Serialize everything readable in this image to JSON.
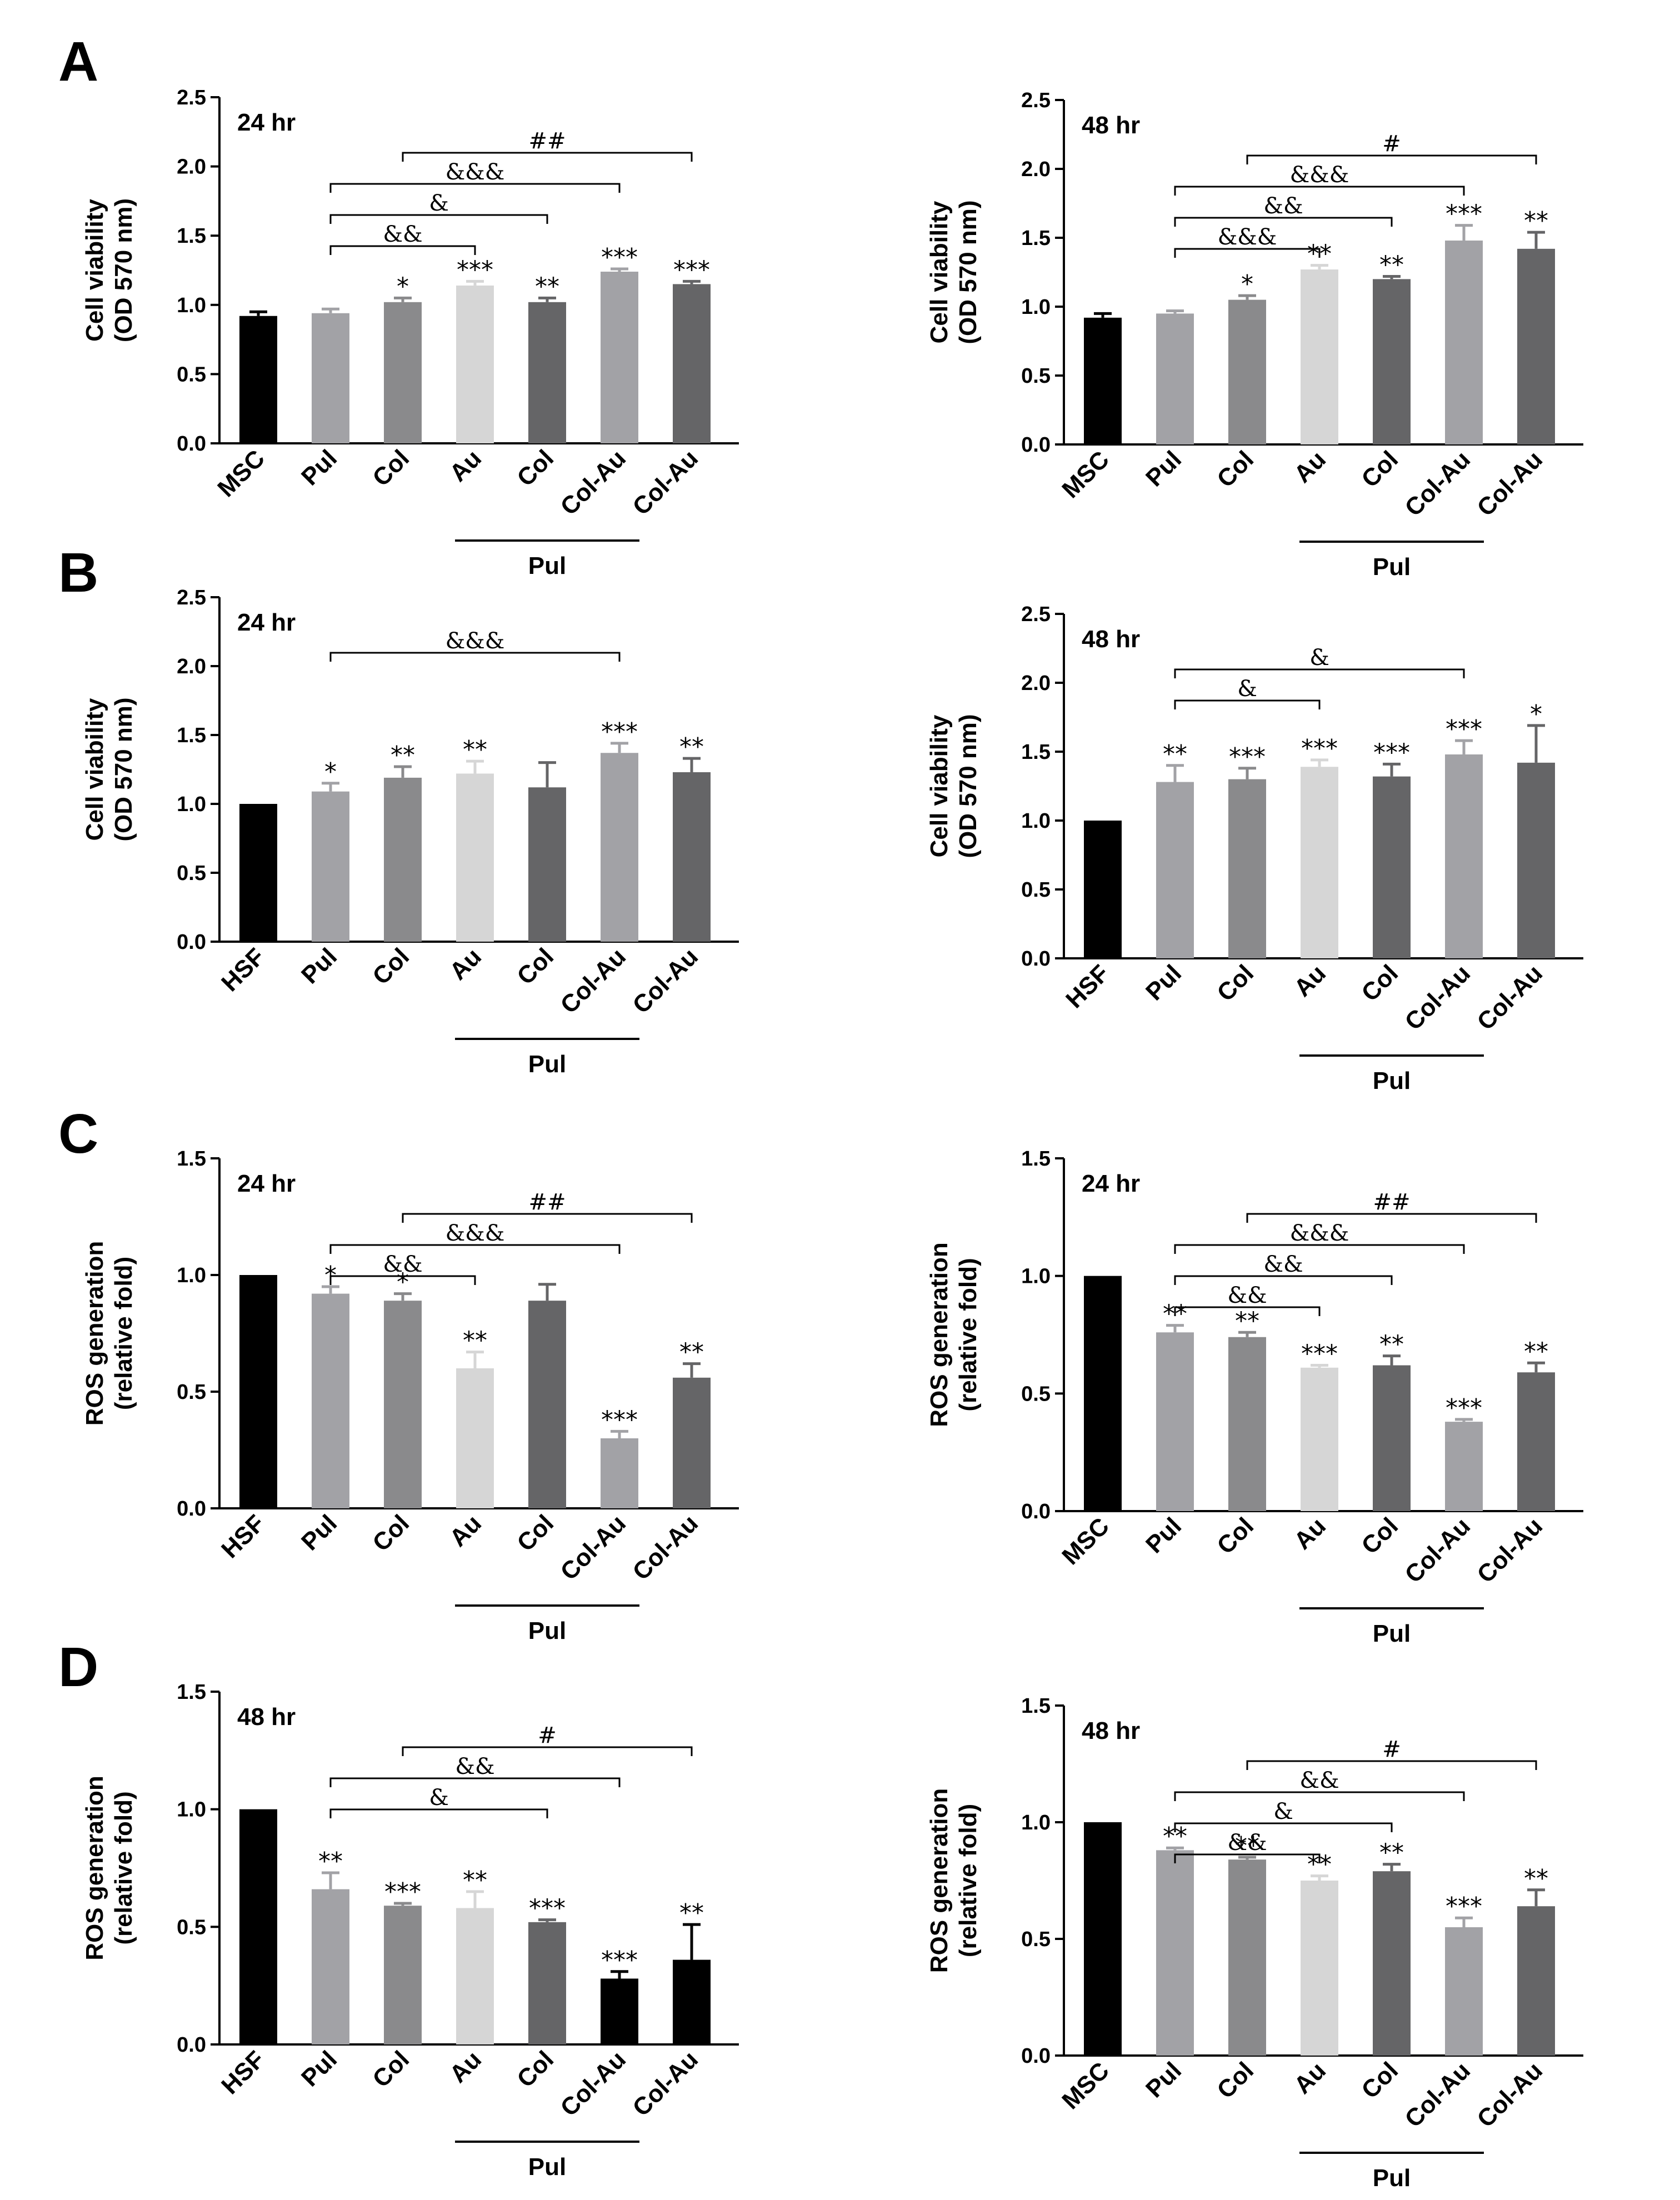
{
  "colors": {
    "control": "#000000",
    "Pul": "#a2a2a6",
    "Col": "#8a8a8c",
    "Au": "#d6d6d6",
    "PulCol": "#656567",
    "PulColAu": "#a2a2a6",
    "ColAu": "#656567",
    "black": "#000000"
  },
  "chart_data": [
    {
      "type": "bar",
      "panel": "A",
      "title": "24 hr",
      "ylabel": [
        "Cell viability",
        "(OD 570 nm)"
      ],
      "ylim": [
        0,
        2.5
      ],
      "yticks": [
        "0.0",
        "0.5",
        "1.0",
        "1.5",
        "2.0",
        "2.5"
      ],
      "categories": [
        "MSC",
        "Pul",
        "Col",
        "Au",
        "Col",
        "Col-Au",
        "Col-Au"
      ],
      "group_label": "Pul",
      "group_span": [
        3,
        5
      ],
      "values": [
        0.92,
        0.94,
        1.02,
        1.14,
        1.02,
        1.24,
        1.15
      ],
      "errors": [
        0.03,
        0.03,
        0.03,
        0.03,
        0.03,
        0.02,
        0.02
      ],
      "stars": [
        "",
        "",
        "*",
        "***",
        "**",
        "***",
        "***"
      ],
      "colors": [
        "control",
        "Pul",
        "Col",
        "Au",
        "PulCol",
        "PulColAu",
        "ColAu"
      ],
      "brackets": [
        {
          "from": 2,
          "to": 6,
          "label": "##"
        },
        {
          "from": 1,
          "to": 5,
          "label": "&&&"
        },
        {
          "from": 1,
          "to": 4,
          "label": "&"
        },
        {
          "from": 1,
          "to": 3,
          "label": "&&"
        }
      ]
    },
    {
      "type": "bar",
      "panel": "",
      "title": "48 hr",
      "ylabel": [
        "Cell viability",
        "(OD 570 nm)"
      ],
      "ylim": [
        0,
        2.5
      ],
      "yticks": [
        "0.0",
        "0.5",
        "1.0",
        "1.5",
        "2.0",
        "2.5"
      ],
      "categories": [
        "MSC",
        "Pul",
        "Col",
        "Au",
        "Col",
        "Col-Au",
        "Col-Au"
      ],
      "group_label": "Pul",
      "group_span": [
        3,
        5
      ],
      "values": [
        0.92,
        0.95,
        1.05,
        1.27,
        1.2,
        1.48,
        1.42
      ],
      "errors": [
        0.03,
        0.02,
        0.03,
        0.03,
        0.02,
        0.11,
        0.12
      ],
      "stars": [
        "",
        "",
        "*",
        "**",
        "**",
        "***",
        "**"
      ],
      "colors": [
        "control",
        "Pul",
        "Col",
        "Au",
        "PulCol",
        "PulColAu",
        "ColAu"
      ],
      "brackets": [
        {
          "from": 2,
          "to": 6,
          "label": "#"
        },
        {
          "from": 1,
          "to": 5,
          "label": "&&&"
        },
        {
          "from": 1,
          "to": 4,
          "label": "&&"
        },
        {
          "from": 1,
          "to": 3,
          "label": "&&&"
        }
      ]
    },
    {
      "type": "bar",
      "panel": "B",
      "title": "24 hr",
      "ylabel": [
        "Cell viability",
        "(OD 570 nm)"
      ],
      "ylim": [
        0,
        2.5
      ],
      "yticks": [
        "0.0",
        "0.5",
        "1.0",
        "1.5",
        "2.0",
        "2.5"
      ],
      "categories": [
        "HSF",
        "Pul",
        "Col",
        "Au",
        "Col",
        "Col-Au",
        "Col-Au"
      ],
      "group_label": "Pul",
      "group_span": [
        3,
        5
      ],
      "values": [
        1.0,
        1.09,
        1.19,
        1.22,
        1.12,
        1.37,
        1.23
      ],
      "errors": [
        0.0,
        0.06,
        0.08,
        0.09,
        0.18,
        0.07,
        0.1
      ],
      "stars": [
        "",
        "*",
        "**",
        "**",
        "",
        "***",
        "**"
      ],
      "colors": [
        "control",
        "Pul",
        "Col",
        "Au",
        "PulCol",
        "PulColAu",
        "ColAu"
      ],
      "brackets": [
        {
          "from": 1,
          "to": 5,
          "label": "&&&"
        }
      ]
    },
    {
      "type": "bar",
      "panel": "",
      "title": "48 hr",
      "ylabel": [
        "Cell viability",
        "(OD 570 nm)"
      ],
      "ylim": [
        0,
        2.5
      ],
      "yticks": [
        "0.0",
        "0.5",
        "1.0",
        "1.5",
        "2.0",
        "2.5"
      ],
      "categories": [
        "HSF",
        "Pul",
        "Col",
        "Au",
        "Col",
        "Col-Au",
        "Col-Au"
      ],
      "group_label": "Pul",
      "group_span": [
        3,
        5
      ],
      "values": [
        1.0,
        1.28,
        1.3,
        1.39,
        1.32,
        1.48,
        1.42
      ],
      "errors": [
        0.0,
        0.12,
        0.08,
        0.05,
        0.09,
        0.1,
        0.27
      ],
      "stars": [
        "",
        "**",
        "***",
        "***",
        "***",
        "***",
        "*"
      ],
      "colors": [
        "control",
        "Pul",
        "Col",
        "Au",
        "PulCol",
        "PulColAu",
        "ColAu"
      ],
      "brackets": [
        {
          "from": 1,
          "to": 5,
          "label": "&"
        },
        {
          "from": 1,
          "to": 3,
          "label": "&"
        }
      ]
    },
    {
      "type": "bar",
      "panel": "C",
      "title": "24 hr",
      "ylabel": [
        "ROS generation",
        "(relative fold)"
      ],
      "ylim": [
        0,
        1.5
      ],
      "yticks": [
        "0.0",
        "0.5",
        "1.0",
        "1.5"
      ],
      "categories": [
        "HSF",
        "Pul",
        "Col",
        "Au",
        "Col",
        "Col-Au",
        "Col-Au"
      ],
      "group_label": "Pul",
      "group_span": [
        3,
        5
      ],
      "values": [
        1.0,
        0.92,
        0.89,
        0.6,
        0.89,
        0.3,
        0.56
      ],
      "errors": [
        0.0,
        0.03,
        0.03,
        0.07,
        0.07,
        0.03,
        0.06
      ],
      "stars": [
        "",
        "*",
        "*",
        "**",
        "",
        "***",
        "**"
      ],
      "colors": [
        "control",
        "Pul",
        "Col",
        "Au",
        "PulCol",
        "PulColAu",
        "ColAu"
      ],
      "brackets": [
        {
          "from": 2,
          "to": 6,
          "label": "##"
        },
        {
          "from": 1,
          "to": 5,
          "label": "&&&"
        },
        {
          "from": 1,
          "to": 3,
          "label": "&&"
        }
      ]
    },
    {
      "type": "bar",
      "panel": "",
      "title": "24 hr",
      "ylabel": [
        "ROS generation",
        "(relative fold)"
      ],
      "ylim": [
        0,
        1.5
      ],
      "yticks": [
        "0.0",
        "0.5",
        "1.0",
        "1.5"
      ],
      "categories": [
        "MSC",
        "Pul",
        "Col",
        "Au",
        "Col",
        "Col-Au",
        "Col-Au"
      ],
      "group_label": "Pul",
      "group_span": [
        3,
        5
      ],
      "values": [
        1.0,
        0.76,
        0.74,
        0.61,
        0.62,
        0.38,
        0.59
      ],
      "errors": [
        0.0,
        0.03,
        0.02,
        0.01,
        0.04,
        0.01,
        0.04
      ],
      "stars": [
        "",
        "**",
        "**",
        "***",
        "**",
        "***",
        "**"
      ],
      "colors": [
        "control",
        "Pul",
        "Col",
        "Au",
        "PulCol",
        "PulColAu",
        "ColAu"
      ],
      "brackets": [
        {
          "from": 2,
          "to": 6,
          "label": "##"
        },
        {
          "from": 1,
          "to": 5,
          "label": "&&&"
        },
        {
          "from": 1,
          "to": 4,
          "label": "&&"
        },
        {
          "from": 1,
          "to": 3,
          "label": "&&"
        }
      ]
    },
    {
      "type": "bar",
      "panel": "D",
      "title": "48 hr",
      "ylabel": [
        "ROS generation",
        "(relative fold)"
      ],
      "ylim": [
        0,
        1.5
      ],
      "yticks": [
        "0.0",
        "0.5",
        "1.0",
        "1.5"
      ],
      "categories": [
        "HSF",
        "Pul",
        "Col",
        "Au",
        "Col",
        "Col-Au",
        "Col-Au"
      ],
      "group_label": "Pul",
      "group_span": [
        3,
        5
      ],
      "values": [
        1.0,
        0.66,
        0.59,
        0.58,
        0.52,
        0.28,
        0.36
      ],
      "errors": [
        0.0,
        0.07,
        0.01,
        0.07,
        0.01,
        0.03,
        0.15
      ],
      "stars": [
        "",
        "**",
        "***",
        "**",
        "***",
        "***",
        "**"
      ],
      "colors": [
        "control",
        "Pul",
        "Col",
        "Au",
        "PulCol",
        "black",
        "black"
      ],
      "brackets": [
        {
          "from": 2,
          "to": 6,
          "label": "#"
        },
        {
          "from": 1,
          "to": 5,
          "label": "&&"
        },
        {
          "from": 1,
          "to": 4,
          "label": "&"
        }
      ]
    },
    {
      "type": "bar",
      "panel": "",
      "title": "48 hr",
      "ylabel": [
        "ROS generation",
        "(relative fold)"
      ],
      "ylim": [
        0,
        1.5
      ],
      "yticks": [
        "0.0",
        "0.5",
        "1.0",
        "1.5"
      ],
      "categories": [
        "MSC",
        "Pul",
        "Col",
        "Au",
        "Col",
        "Col-Au",
        "Col-Au"
      ],
      "group_label": "Pul",
      "group_span": [
        3,
        5
      ],
      "values": [
        1.0,
        0.88,
        0.84,
        0.75,
        0.79,
        0.55,
        0.64
      ],
      "errors": [
        0.0,
        0.01,
        0.01,
        0.02,
        0.03,
        0.04,
        0.07
      ],
      "stars": [
        "",
        "**",
        "**",
        "**",
        "**",
        "***",
        "**"
      ],
      "colors": [
        "control",
        "Pul",
        "Col",
        "Au",
        "PulCol",
        "PulColAu",
        "ColAu"
      ],
      "brackets": [
        {
          "from": 2,
          "to": 6,
          "label": "#"
        },
        {
          "from": 1,
          "to": 5,
          "label": "&&"
        },
        {
          "from": 1,
          "to": 4,
          "label": "&"
        },
        {
          "from": 1,
          "to": 3,
          "label": "&&"
        }
      ]
    }
  ]
}
